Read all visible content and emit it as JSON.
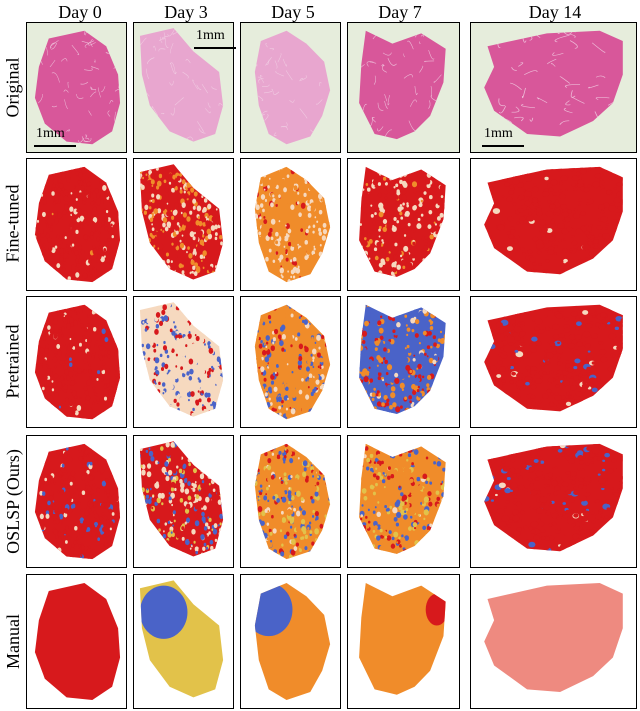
{
  "columns": [
    "Day 0",
    "Day 3",
    "Day 5",
    "Day 7",
    "Day 14"
  ],
  "rows": [
    "Original",
    "Fine-tuned",
    "Pretrained",
    "OSLSP (Ours)",
    "Manual"
  ],
  "scale_bars": {
    "day0": "1mm",
    "day3": "1mm",
    "day14": "1mm"
  },
  "palette": {
    "tissue_original": "#d8579a",
    "tissue_original_light": "#e8a6cf",
    "background_original": "#e6eddc",
    "class_red": "#d7191c",
    "class_orange": "#f08c2a",
    "class_peach": "#f6d9bf",
    "class_blue": "#4a63c8",
    "class_yellow": "#e2c24a",
    "class_salmon": "#ee8a80"
  }
}
